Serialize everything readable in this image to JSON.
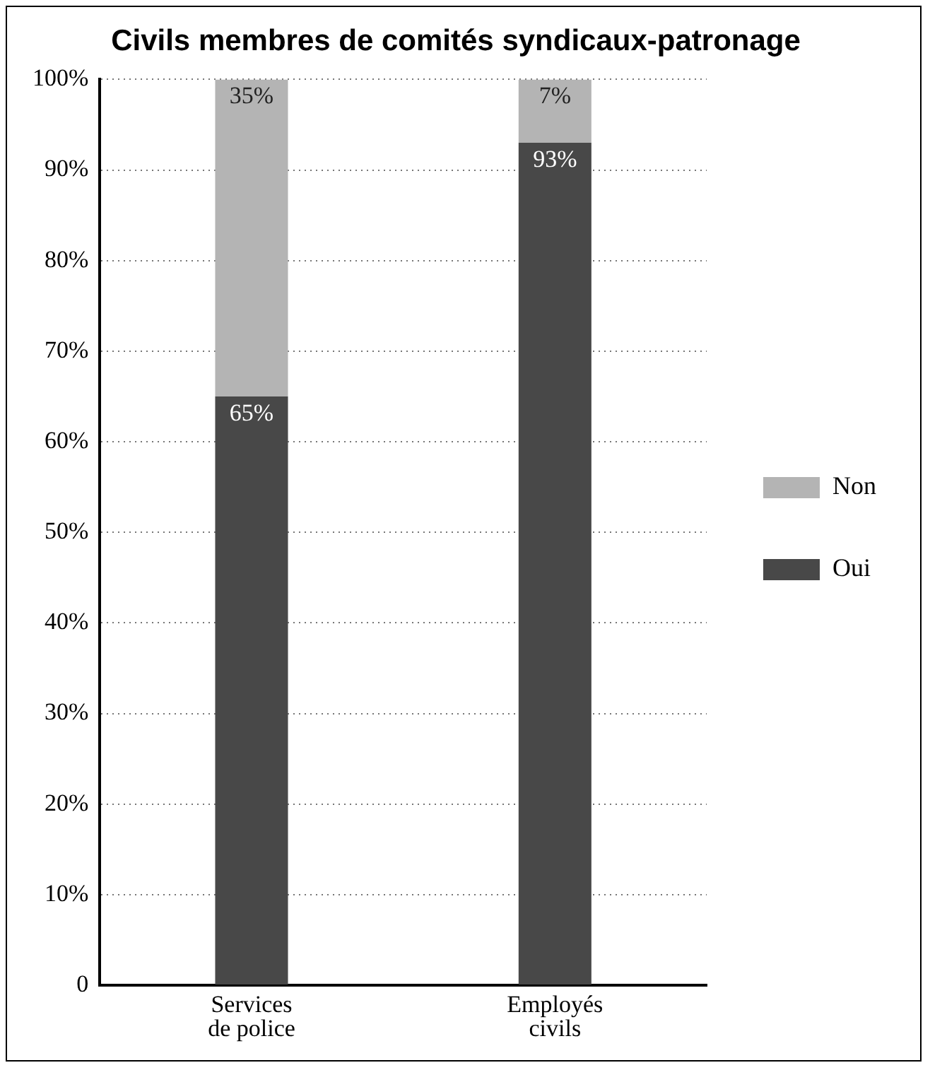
{
  "chart_data": {
    "type": "bar",
    "title": "Civils membres de comités syndicaux-patronage",
    "categories": [
      "Services de police",
      "Employés civils"
    ],
    "stacked": true,
    "series": [
      {
        "name": "Oui",
        "color": "#484848",
        "values": [
          65,
          93
        ],
        "value_labels": [
          "65%",
          "93%"
        ]
      },
      {
        "name": "Non",
        "color": "#b4b4b4",
        "values": [
          35,
          7
        ],
        "value_labels": [
          "35%",
          "7%"
        ]
      }
    ],
    "ylim": [
      0,
      100
    ],
    "yticks": [
      0,
      {
        "value": 10,
        "label": "10%"
      },
      {
        "value": 20,
        "label": "20%"
      },
      {
        "value": 30,
        "label": "30%"
      },
      {
        "value": 40,
        "label": "40%"
      },
      {
        "value": 50,
        "label": "50%"
      },
      {
        "value": 60,
        "label": "60%"
      },
      {
        "value": 70,
        "label": "70%"
      },
      {
        "value": 80,
        "label": "80%"
      },
      {
        "value": 90,
        "label": "90%"
      },
      {
        "value": 100,
        "label": "100%"
      }
    ],
    "grid": "y",
    "legend": "right"
  }
}
